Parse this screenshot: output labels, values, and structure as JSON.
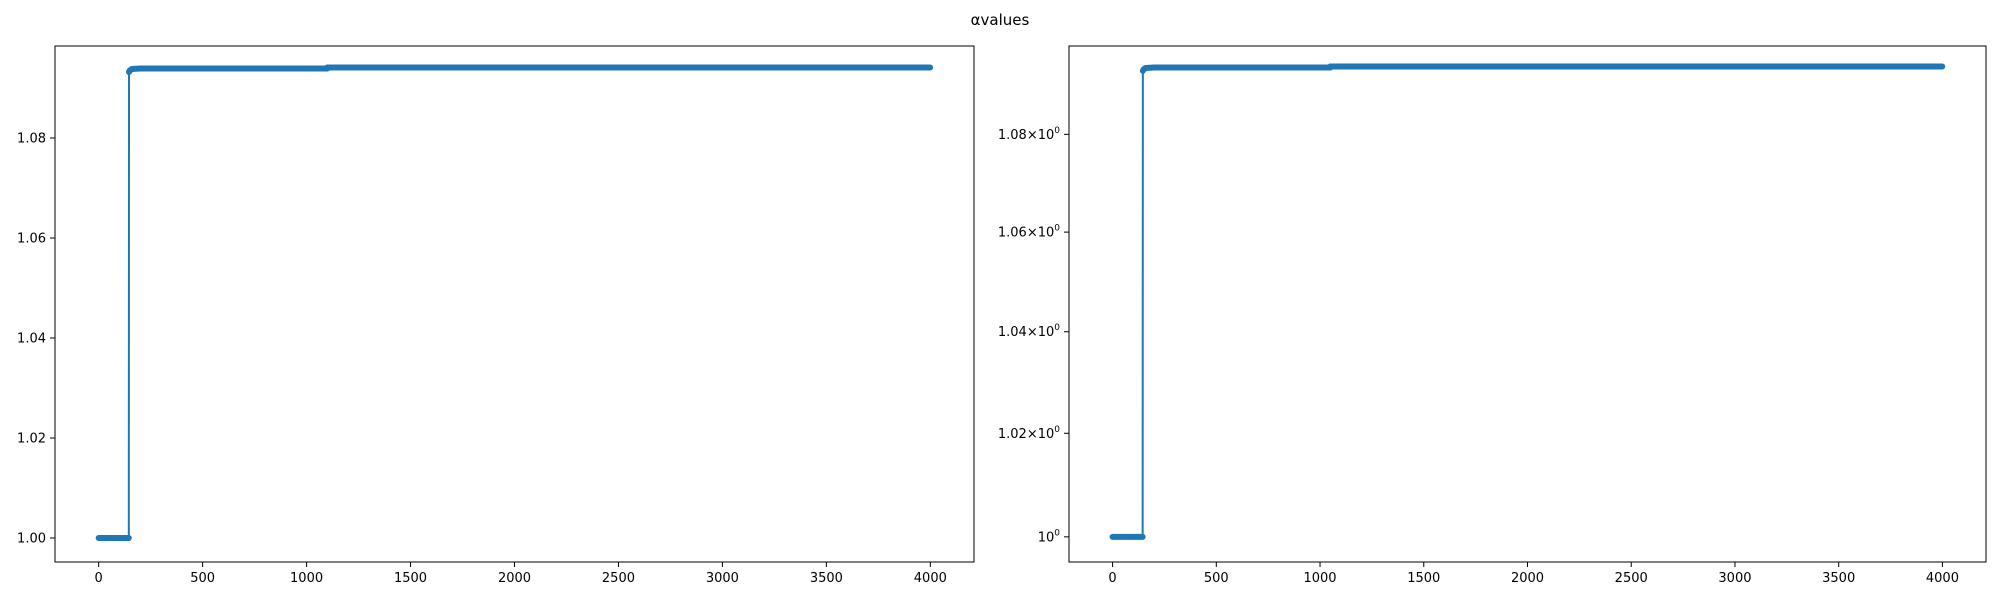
{
  "figure": {
    "title": "αvalues"
  },
  "chart_data": [
    {
      "type": "line",
      "title": "",
      "xlabel": "",
      "ylabel": "",
      "yscale": "linear",
      "xlim": [
        -210,
        4210
      ],
      "ylim": [
        0.9952,
        1.0984
      ],
      "xticks": [
        0,
        500,
        1000,
        1500,
        2000,
        2500,
        3000,
        3500,
        4000
      ],
      "xtick_labels": [
        "0",
        "500",
        "1000",
        "1500",
        "2000",
        "2500",
        "3000",
        "3500",
        "4000"
      ],
      "yticks": [
        1.0,
        1.02,
        1.04,
        1.06,
        1.08
      ],
      "ytick_labels": [
        "1.00",
        "1.02",
        "1.04",
        "1.06",
        "1.08"
      ],
      "grid": false,
      "markers": true,
      "color": "#1f77b4",
      "series": [
        {
          "x": [
            0,
            145,
            146,
            150,
            160,
            200,
            1099,
            1100,
            3999
          ],
          "values": [
            1.0,
            1.0,
            1.0932,
            1.0935,
            1.0938,
            1.0939,
            1.0939,
            1.0941,
            1.0941
          ]
        }
      ]
    },
    {
      "type": "line",
      "title": "",
      "xlabel": "",
      "ylabel": "",
      "yscale": "log",
      "xlim": [
        -210,
        4210
      ],
      "ylim": [
        0.9952,
        1.0984
      ],
      "xticks": [
        0,
        500,
        1000,
        1500,
        2000,
        2500,
        3000,
        3500,
        4000
      ],
      "xtick_labels": [
        "0",
        "500",
        "1000",
        "1500",
        "2000",
        "2500",
        "3000",
        "3500",
        "4000"
      ],
      "yticks": [
        1.0,
        1.02,
        1.04,
        1.06,
        1.08
      ],
      "ytick_labels": [
        {
          "base": "10",
          "exp": "0"
        },
        {
          "base": "1.02×10",
          "exp": "0"
        },
        {
          "base": "1.04×10",
          "exp": "0"
        },
        {
          "base": "1.06×10",
          "exp": "0"
        },
        {
          "base": "1.08×10",
          "exp": "0"
        }
      ],
      "grid": false,
      "markers": true,
      "color": "#1f77b4",
      "series": [
        {
          "x": [
            0,
            145,
            146,
            150,
            160,
            200,
            1049,
            1050,
            3999
          ],
          "values": [
            1.0,
            1.0,
            1.0932,
            1.0935,
            1.0938,
            1.0939,
            1.0939,
            1.0941,
            1.0941
          ]
        }
      ]
    }
  ]
}
